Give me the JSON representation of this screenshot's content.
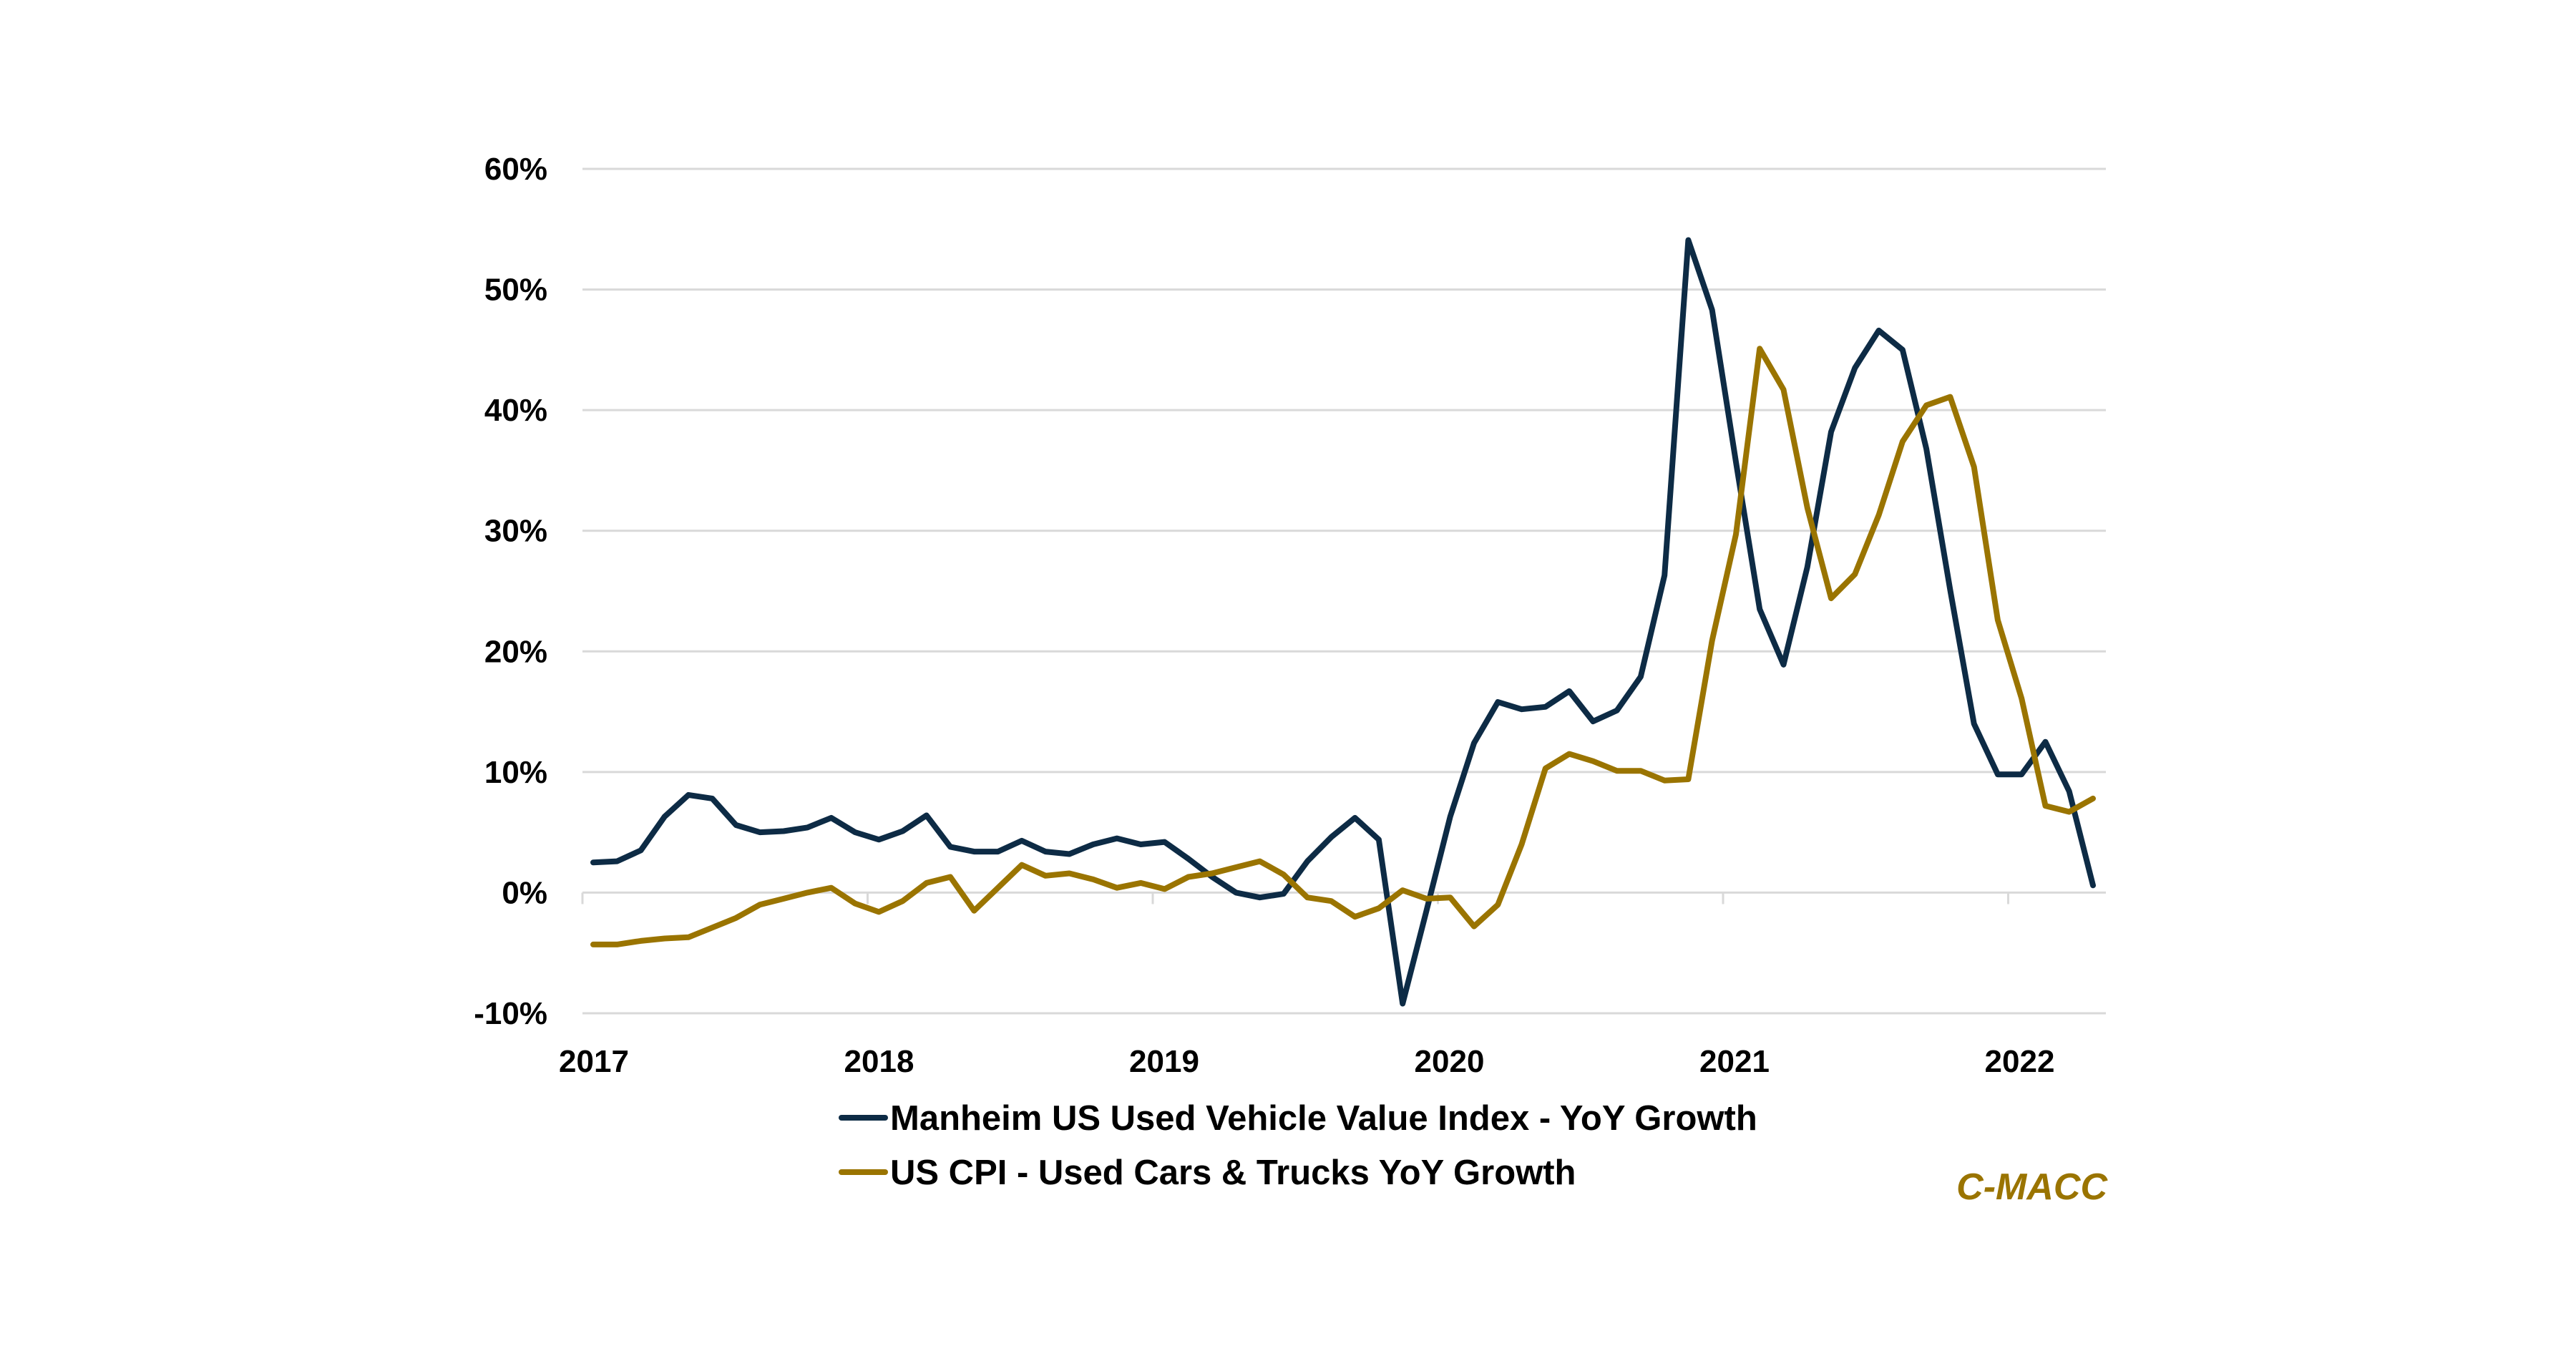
{
  "chart_data": {
    "type": "line",
    "title": "",
    "xlabel": "",
    "ylabel": "",
    "frequency": "monthly",
    "x_start": "2017-01",
    "x_end": "2022-04",
    "x_tick_labels": [
      "2017",
      "2018",
      "2019",
      "2020",
      "2021",
      "2022"
    ],
    "y_tick_labels": [
      "60%",
      "50%",
      "40%",
      "30%",
      "20%",
      "10%",
      "0%",
      "-10%"
    ],
    "y_ticks": [
      60,
      50,
      40,
      30,
      20,
      10,
      0,
      -10
    ],
    "ylim": [
      -10,
      60
    ],
    "y_unit": "%",
    "grid": "horizontal",
    "legend_position": "bottom",
    "series": [
      {
        "name": "Manheim US Used Vehicle Value Index - YoY Growth",
        "color": "#0d2b45",
        "values": [
          2.5,
          2.6,
          3.5,
          6.3,
          8.1,
          7.8,
          5.6,
          5.0,
          5.1,
          5.4,
          6.2,
          5.0,
          4.4,
          5.1,
          6.4,
          3.8,
          3.4,
          3.4,
          4.3,
          3.4,
          3.2,
          4.0,
          4.5,
          4.0,
          4.2,
          2.8,
          1.3,
          0.0,
          -0.4,
          -0.1,
          2.6,
          4.6,
          6.2,
          4.4,
          -9.2,
          -1.5,
          6.3,
          12.4,
          15.8,
          15.2,
          15.4,
          16.7,
          14.2,
          15.1,
          17.9,
          26.3,
          54.1,
          48.3,
          35.7,
          23.5,
          18.9,
          27.0,
          38.2,
          43.5,
          46.6,
          45.0,
          36.8,
          25.1,
          14.0,
          9.8,
          9.8,
          12.5,
          8.4,
          0.6
        ]
      },
      {
        "name": "US CPI - Used Cars & Trucks YoY Growth",
        "color": "#9a7400",
        "values": [
          -4.3,
          -4.3,
          -4.0,
          -3.8,
          -3.7,
          -2.9,
          -2.1,
          -1.0,
          -0.5,
          0.0,
          0.4,
          -0.9,
          -1.6,
          -0.7,
          0.8,
          1.3,
          -1.5,
          0.4,
          2.3,
          1.4,
          1.6,
          1.1,
          0.4,
          0.8,
          0.3,
          1.3,
          1.6,
          2.1,
          2.6,
          1.5,
          -0.4,
          -0.7,
          -2.0,
          -1.3,
          0.2,
          -0.5,
          -0.4,
          -2.8,
          -1.0,
          4.0,
          10.3,
          11.5,
          10.9,
          10.1,
          10.1,
          9.3,
          9.4,
          20.9,
          29.7,
          45.1,
          41.7,
          31.9,
          24.4,
          26.4,
          31.3,
          37.4,
          40.4,
          41.1,
          35.3,
          22.6,
          16.1,
          7.2,
          6.7,
          7.8
        ]
      }
    ],
    "annotations": [
      "C-MACC"
    ]
  },
  "brand": {
    "text": "C-MACC",
    "color": "#9a7400"
  },
  "colors": {
    "gridline": "#d9d9d9",
    "text": "#000000"
  }
}
